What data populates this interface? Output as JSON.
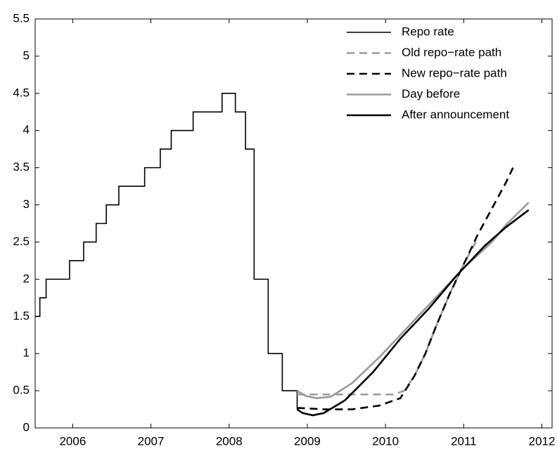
{
  "chart_data": {
    "type": "line",
    "xlim": [
      2006.02,
      2012.63
    ],
    "ylim": [
      0,
      5.5
    ],
    "yticks": [
      0,
      0.5,
      1,
      1.5,
      2,
      2.5,
      3,
      3.5,
      4,
      4.5,
      5,
      5.5
    ],
    "xticks": [
      {
        "value": 2006.5,
        "label": "2006"
      },
      {
        "value": 2007.5,
        "label": "2007"
      },
      {
        "value": 2008.5,
        "label": "2008"
      },
      {
        "value": 2009.5,
        "label": "2009"
      },
      {
        "value": 2010.5,
        "label": "2010"
      },
      {
        "value": 2011.5,
        "label": "2011"
      },
      {
        "value": 2012.5,
        "label": "2012"
      }
    ],
    "legend": "upper right",
    "series": [
      {
        "name": "Repo rate",
        "color": "#000000",
        "linestyle": "solid",
        "drawstyle": "steps-post",
        "x": [
          2006.02,
          2006.08,
          2006.16,
          2006.46,
          2006.64,
          2006.8,
          2006.93,
          2007.09,
          2007.42,
          2007.62,
          2007.76,
          2008.04,
          2008.41,
          2008.58,
          2008.71,
          2008.82,
          2009.0,
          2009.18,
          2009.37
        ],
        "values": [
          1.5,
          1.75,
          2,
          2.25,
          2.5,
          2.75,
          3,
          3.25,
          3.5,
          3.75,
          4,
          4.25,
          4.5,
          4.25,
          3.75,
          2,
          1,
          0.5,
          0.25
        ]
      },
      {
        "name": "Old repo−rate path",
        "color": "#999999",
        "linestyle": "dashed",
        "drawstyle": "default",
        "x": [
          2009.37,
          2010.6,
          2010.74,
          2010.87,
          2011.01,
          2011.14,
          2011.32,
          2011.5,
          2011.68
        ],
        "values": [
          0.45,
          0.45,
          0.5,
          0.7,
          1.0,
          1.35,
          1.8,
          2.2,
          2.55
        ]
      },
      {
        "name": "New repo−rate path",
        "color": "#000000",
        "linestyle": "dashed",
        "drawstyle": "default",
        "x": [
          2009.37,
          2009.71,
          2010.07,
          2010.42,
          2010.69,
          2010.87,
          2011.01,
          2011.14,
          2011.32,
          2011.5,
          2011.68,
          2011.86,
          2012.04,
          2012.13
        ],
        "values": [
          0.27,
          0.25,
          0.25,
          0.3,
          0.4,
          0.7,
          1.0,
          1.35,
          1.8,
          2.2,
          2.6,
          2.95,
          3.3,
          3.5
        ]
      },
      {
        "name": "Day before",
        "color": "#999999",
        "linestyle": "solid",
        "drawstyle": "default",
        "x": [
          2009.37,
          2009.48,
          2009.62,
          2009.8,
          2010.07,
          2010.42,
          2010.78,
          2011.14,
          2011.5,
          2011.86,
          2012.04,
          2012.33
        ],
        "values": [
          0.5,
          0.43,
          0.4,
          0.42,
          0.6,
          0.95,
          1.35,
          1.75,
          2.15,
          2.5,
          2.73,
          3.03
        ]
      },
      {
        "name": "After announcement",
        "color": "#000000",
        "linestyle": "solid",
        "drawstyle": "default",
        "x": [
          2009.37,
          2009.44,
          2009.57,
          2009.71,
          2009.98,
          2010.34,
          2010.69,
          2011.05,
          2011.41,
          2011.77,
          2012.04,
          2012.33
        ],
        "values": [
          0.25,
          0.2,
          0.17,
          0.2,
          0.37,
          0.75,
          1.2,
          1.6,
          2.05,
          2.45,
          2.7,
          2.93
        ]
      }
    ]
  }
}
